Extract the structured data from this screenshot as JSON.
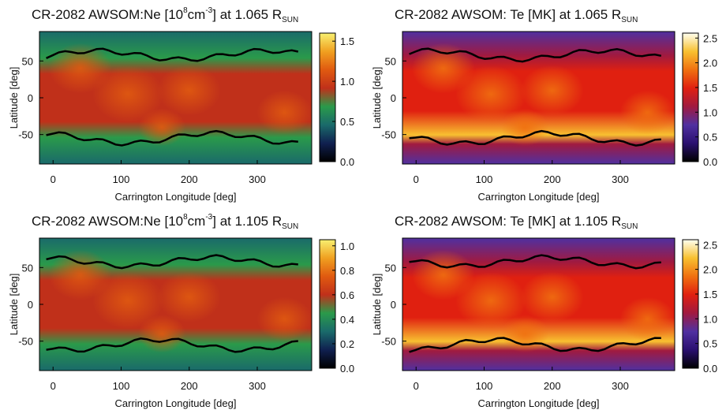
{
  "chart_data": [
    {
      "type": "heatmap",
      "title": [
        "CR-2082 AWSOM:Ne [10",
        "8",
        "cm",
        "-3",
        "] at 1.065 R",
        "SUN"
      ],
      "xlabel": "Carrington Longitude [deg]",
      "ylabel": "Latitude [deg]",
      "xlim": [
        -20,
        380
      ],
      "xticks": [
        0,
        100,
        200,
        300
      ],
      "ylim": [
        -90,
        90
      ],
      "yticks": [
        -50,
        0,
        50
      ],
      "clim": [
        0,
        1.6
      ],
      "cticks": [
        {
          "value": 0,
          "label": "0.0"
        },
        {
          "value": 0.5,
          "label": "0.5"
        },
        {
          "value": 1.0,
          "label": "1.0"
        },
        {
          "value": 1.5,
          "label": "1.5"
        }
      ],
      "colormap": [
        "#000000",
        "#102050",
        "#1a6a6a",
        "#2a9a4a",
        "#c0301a",
        "#e05a10",
        "#f0a020",
        "#f8f070"
      ]
    },
    {
      "type": "heatmap",
      "title": [
        "CR-2082 AWSOM: Te [MK] at 1.065 R",
        "SUN"
      ],
      "xlabel": "Carrington Longitude [deg]",
      "ylabel": "Latitude [deg]",
      "xlim": [
        -20,
        380
      ],
      "xticks": [
        0,
        100,
        200,
        300
      ],
      "ylim": [
        -90,
        90
      ],
      "yticks": [
        -50,
        0,
        50
      ],
      "clim": [
        0,
        2.6
      ],
      "cticks": [
        {
          "value": 0,
          "label": "0.0"
        },
        {
          "value": 0.5,
          "label": "0.5"
        },
        {
          "value": 1.0,
          "label": "1.0"
        },
        {
          "value": 1.5,
          "label": "1.5"
        },
        {
          "value": 2.0,
          "label": "2.0"
        },
        {
          "value": 2.5,
          "label": "2.5"
        }
      ],
      "colormap": [
        "#000000",
        "#2a1070",
        "#5030a0",
        "#a01a40",
        "#e02010",
        "#f07010",
        "#f8c030",
        "#fffff0"
      ]
    },
    {
      "type": "heatmap",
      "title": [
        "CR-2082 AWSOM:Ne [10",
        "8",
        "cm",
        "-3",
        "] at 1.105 R",
        "SUN"
      ],
      "xlabel": "Carrington Longitude [deg]",
      "ylabel": "Latitude [deg]",
      "xlim": [
        -20,
        380
      ],
      "xticks": [
        0,
        100,
        200,
        300
      ],
      "ylim": [
        -90,
        90
      ],
      "yticks": [
        -50,
        0,
        50
      ],
      "clim": [
        0,
        1.05
      ],
      "cticks": [
        {
          "value": 0,
          "label": "0.0"
        },
        {
          "value": 0.2,
          "label": "0.2"
        },
        {
          "value": 0.4,
          "label": "0.4"
        },
        {
          "value": 0.6,
          "label": "0.6"
        },
        {
          "value": 0.8,
          "label": "0.8"
        },
        {
          "value": 1.0,
          "label": "1.0"
        }
      ],
      "colormap": [
        "#000000",
        "#102050",
        "#1a6a6a",
        "#2a9a4a",
        "#c0301a",
        "#e05a10",
        "#f0a020",
        "#f8f070"
      ]
    },
    {
      "type": "heatmap",
      "title": [
        "CR-2082 AWSOM: Te [MK] at 1.105 R",
        "SUN"
      ],
      "xlabel": "Carrington Longitude [deg]",
      "ylabel": "Latitude [deg]",
      "xlim": [
        -20,
        380
      ],
      "xticks": [
        0,
        100,
        200,
        300
      ],
      "ylim": [
        -90,
        90
      ],
      "yticks": [
        -50,
        0,
        50
      ],
      "clim": [
        0,
        2.6
      ],
      "cticks": [
        {
          "value": 0,
          "label": "0.0"
        },
        {
          "value": 0.5,
          "label": "0.5"
        },
        {
          "value": 1.0,
          "label": "1.0"
        },
        {
          "value": 1.5,
          "label": "1.5"
        },
        {
          "value": 2.0,
          "label": "2.0"
        },
        {
          "value": 2.5,
          "label": "2.5"
        }
      ],
      "colormap": [
        "#000000",
        "#2a1070",
        "#5030a0",
        "#a01a40",
        "#e02010",
        "#f07010",
        "#f8c030",
        "#fffff0"
      ]
    }
  ]
}
